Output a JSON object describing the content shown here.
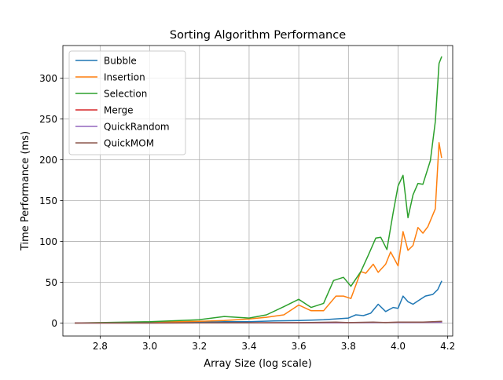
{
  "chart_data": {
    "type": "line",
    "title": "Sorting Algorithm Performance",
    "xlabel": "Array Size (log scale)",
    "ylabel": "Time Performance (ms)",
    "xlim": [
      2.65,
      4.22
    ],
    "ylim": [
      -16,
      340
    ],
    "xticks": [
      2.8,
      3.0,
      3.2,
      3.4,
      3.6,
      3.8,
      4.0,
      4.2
    ],
    "xtick_labels": [
      "2.8",
      "3.0",
      "3.2",
      "3.4",
      "3.6",
      "3.8",
      "4.0",
      "4.2"
    ],
    "yticks": [
      0,
      50,
      100,
      150,
      200,
      250,
      300
    ],
    "ytick_labels": [
      "0",
      "50",
      "100",
      "150",
      "200",
      "250",
      "300"
    ],
    "grid": true,
    "legend_position": "top-left",
    "series": [
      {
        "name": "Bubble",
        "color": "#1f77b4",
        "points": [
          [
            2.7,
            0
          ],
          [
            2.8,
            0.2
          ],
          [
            3.0,
            0.5
          ],
          [
            3.2,
            1
          ],
          [
            3.3,
            1.5
          ],
          [
            3.4,
            1.5
          ],
          [
            3.5,
            2.5
          ],
          [
            3.6,
            3
          ],
          [
            3.7,
            4
          ],
          [
            3.8,
            6
          ],
          [
            3.83,
            10
          ],
          [
            3.86,
            9
          ],
          [
            3.89,
            12
          ],
          [
            3.92,
            23
          ],
          [
            3.95,
            14
          ],
          [
            3.98,
            19
          ],
          [
            4.0,
            18
          ],
          [
            4.02,
            33
          ],
          [
            4.04,
            26
          ],
          [
            4.06,
            23
          ],
          [
            4.08,
            27
          ],
          [
            4.11,
            33
          ],
          [
            4.14,
            35
          ],
          [
            4.16,
            41
          ],
          [
            4.175,
            51
          ]
        ]
      },
      {
        "name": "Insertion",
        "color": "#ff7f0e",
        "points": [
          [
            2.7,
            0
          ],
          [
            2.8,
            0.3
          ],
          [
            3.0,
            1
          ],
          [
            3.2,
            2
          ],
          [
            3.3,
            3
          ],
          [
            3.4,
            5
          ],
          [
            3.47,
            7
          ],
          [
            3.54,
            10
          ],
          [
            3.6,
            22
          ],
          [
            3.65,
            15
          ],
          [
            3.7,
            15
          ],
          [
            3.75,
            33
          ],
          [
            3.78,
            33
          ],
          [
            3.81,
            30
          ],
          [
            3.85,
            63
          ],
          [
            3.87,
            61
          ],
          [
            3.9,
            72
          ],
          [
            3.92,
            62
          ],
          [
            3.95,
            72
          ],
          [
            3.97,
            87
          ],
          [
            4.0,
            70
          ],
          [
            4.02,
            112
          ],
          [
            4.04,
            89
          ],
          [
            4.06,
            95
          ],
          [
            4.08,
            117
          ],
          [
            4.1,
            110
          ],
          [
            4.12,
            118
          ],
          [
            4.15,
            140
          ],
          [
            4.165,
            221
          ],
          [
            4.175,
            203
          ]
        ]
      },
      {
        "name": "Selection",
        "color": "#2ca02c",
        "points": [
          [
            2.7,
            0
          ],
          [
            2.8,
            0.5
          ],
          [
            3.0,
            1.5
          ],
          [
            3.2,
            4
          ],
          [
            3.3,
            8
          ],
          [
            3.4,
            6
          ],
          [
            3.47,
            10
          ],
          [
            3.54,
            20
          ],
          [
            3.6,
            29
          ],
          [
            3.65,
            19
          ],
          [
            3.7,
            24
          ],
          [
            3.74,
            52
          ],
          [
            3.78,
            56
          ],
          [
            3.81,
            45
          ],
          [
            3.85,
            63
          ],
          [
            3.88,
            83
          ],
          [
            3.91,
            104
          ],
          [
            3.93,
            105
          ],
          [
            3.955,
            90
          ],
          [
            3.98,
            135
          ],
          [
            4.0,
            168
          ],
          [
            4.02,
            181
          ],
          [
            4.04,
            129
          ],
          [
            4.06,
            157
          ],
          [
            4.08,
            171
          ],
          [
            4.1,
            170
          ],
          [
            4.13,
            199
          ],
          [
            4.15,
            247
          ],
          [
            4.165,
            318
          ],
          [
            4.175,
            326
          ]
        ]
      },
      {
        "name": "Merge",
        "color": "#d62728",
        "points": [
          [
            2.7,
            0
          ],
          [
            2.8,
            0
          ],
          [
            3.0,
            0
          ],
          [
            3.2,
            0.2
          ],
          [
            3.4,
            0.3
          ],
          [
            3.6,
            0.4
          ],
          [
            3.8,
            0.5
          ],
          [
            3.9,
            0.6
          ],
          [
            4.0,
            0.7
          ],
          [
            4.1,
            0.8
          ],
          [
            4.175,
            1
          ]
        ]
      },
      {
        "name": "QuickRandom",
        "color": "#9467bd",
        "points": [
          [
            2.7,
            0
          ],
          [
            2.8,
            0
          ],
          [
            3.0,
            0
          ],
          [
            3.2,
            0.1
          ],
          [
            3.4,
            0.2
          ],
          [
            3.6,
            0.3
          ],
          [
            3.8,
            0.4
          ],
          [
            3.9,
            0.5
          ],
          [
            4.0,
            0.6
          ],
          [
            4.1,
            0.7
          ],
          [
            4.175,
            0.8
          ]
        ]
      },
      {
        "name": "QuickMOM",
        "color": "#8c564b",
        "points": [
          [
            2.7,
            0
          ],
          [
            2.8,
            0
          ],
          [
            3.0,
            0
          ],
          [
            3.2,
            0.2
          ],
          [
            3.4,
            0.3
          ],
          [
            3.6,
            0.4
          ],
          [
            3.75,
            1
          ],
          [
            3.8,
            0.5
          ],
          [
            3.9,
            1
          ],
          [
            3.95,
            0.5
          ],
          [
            4.0,
            1
          ],
          [
            4.1,
            1
          ],
          [
            4.175,
            2
          ]
        ]
      }
    ]
  }
}
